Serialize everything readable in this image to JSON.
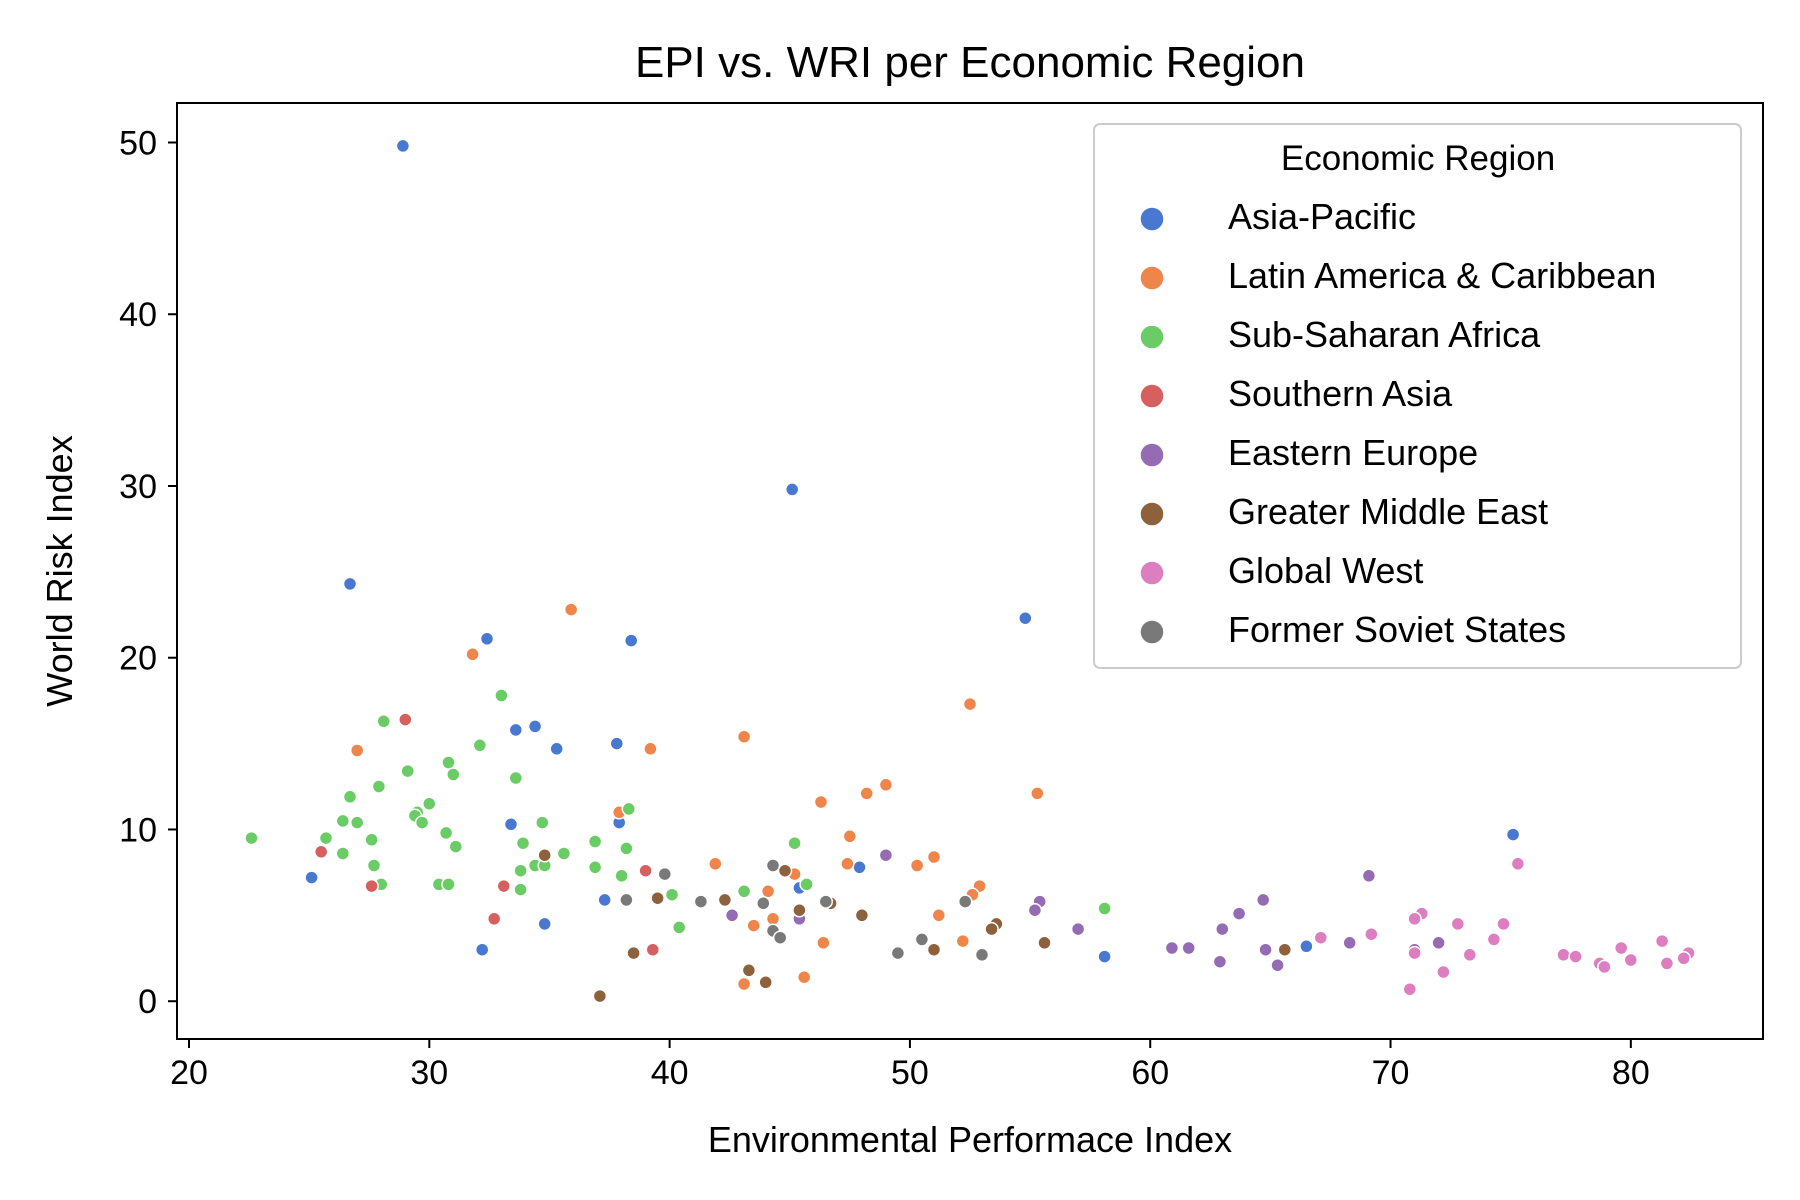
{
  "chart_data": {
    "type": "scatter",
    "title": "EPI vs. WRI per Economic Region",
    "xlabel": "Environmental Performace Index",
    "ylabel": "World Risk Index",
    "xlim": [
      19.5,
      85.5
    ],
    "ylim": [
      -2.2,
      52.3
    ],
    "xticks": [
      20,
      30,
      40,
      50,
      60,
      70,
      80
    ],
    "yticks": [
      0,
      10,
      20,
      30,
      40,
      50
    ],
    "grid": false,
    "legend": {
      "title": "Economic Region",
      "placement": "top-right"
    },
    "series": [
      {
        "name": "Asia-Pacific",
        "color": "#4878d0",
        "points": [
          [
            28.9,
            49.8
          ],
          [
            45.1,
            29.8
          ],
          [
            26.7,
            24.3
          ],
          [
            54.8,
            22.3
          ],
          [
            32.4,
            21.1
          ],
          [
            38.4,
            21.0
          ],
          [
            34.4,
            16.0
          ],
          [
            33.6,
            15.8
          ],
          [
            35.3,
            14.7
          ],
          [
            37.8,
            15.0
          ],
          [
            33.4,
            10.3
          ],
          [
            37.9,
            10.4
          ],
          [
            75.1,
            9.7
          ],
          [
            25.1,
            7.2
          ],
          [
            47.9,
            7.8
          ],
          [
            45.4,
            6.6
          ],
          [
            37.3,
            5.9
          ],
          [
            34.8,
            4.5
          ],
          [
            32.2,
            3.0
          ],
          [
            58.1,
            2.6
          ],
          [
            66.5,
            3.2
          ]
        ]
      },
      {
        "name": "Latin America & Caribbean",
        "color": "#ee854a",
        "points": [
          [
            35.9,
            22.8
          ],
          [
            31.8,
            20.2
          ],
          [
            52.5,
            17.3
          ],
          [
            27.0,
            14.6
          ],
          [
            43.1,
            15.4
          ],
          [
            39.2,
            14.7
          ],
          [
            55.3,
            12.1
          ],
          [
            49.0,
            12.6
          ],
          [
            48.2,
            12.1
          ],
          [
            46.3,
            11.6
          ],
          [
            37.9,
            11.0
          ],
          [
            47.5,
            9.6
          ],
          [
            51.0,
            8.4
          ],
          [
            50.3,
            7.9
          ],
          [
            47.4,
            8.0
          ],
          [
            41.9,
            8.0
          ],
          [
            45.2,
            7.4
          ],
          [
            52.9,
            6.7
          ],
          [
            52.6,
            6.2
          ],
          [
            44.1,
            6.4
          ],
          [
            51.2,
            5.0
          ],
          [
            44.3,
            4.8
          ],
          [
            43.5,
            4.4
          ],
          [
            52.2,
            3.5
          ],
          [
            46.4,
            3.4
          ],
          [
            45.6,
            1.4
          ],
          [
            43.1,
            1.0
          ]
        ]
      },
      {
        "name": "Sub-Saharan Africa",
        "color": "#6acc64",
        "points": [
          [
            33.0,
            17.8
          ],
          [
            28.1,
            16.3
          ],
          [
            32.1,
            14.9
          ],
          [
            30.8,
            13.9
          ],
          [
            29.1,
            13.4
          ],
          [
            31.0,
            13.2
          ],
          [
            33.6,
            13.0
          ],
          [
            27.9,
            12.5
          ],
          [
            26.7,
            11.9
          ],
          [
            30.0,
            11.5
          ],
          [
            38.3,
            11.2
          ],
          [
            29.5,
            11.0
          ],
          [
            29.4,
            10.8
          ],
          [
            29.7,
            10.4
          ],
          [
            27.0,
            10.4
          ],
          [
            26.4,
            10.5
          ],
          [
            34.7,
            10.4
          ],
          [
            30.7,
            9.8
          ],
          [
            22.6,
            9.5
          ],
          [
            25.7,
            9.5
          ],
          [
            27.6,
            9.4
          ],
          [
            36.9,
            9.3
          ],
          [
            45.2,
            9.2
          ],
          [
            33.9,
            9.2
          ],
          [
            31.1,
            9.0
          ],
          [
            38.2,
            8.9
          ],
          [
            35.6,
            8.6
          ],
          [
            26.4,
            8.6
          ],
          [
            34.4,
            7.9
          ],
          [
            34.8,
            7.9
          ],
          [
            36.9,
            7.8
          ],
          [
            27.7,
            7.9
          ],
          [
            33.8,
            7.6
          ],
          [
            38.0,
            7.3
          ],
          [
            28.0,
            6.8
          ],
          [
            30.4,
            6.8
          ],
          [
            30.8,
            6.8
          ],
          [
            45.7,
            6.8
          ],
          [
            43.1,
            6.4
          ],
          [
            33.8,
            6.5
          ],
          [
            40.1,
            6.2
          ],
          [
            40.4,
            4.3
          ],
          [
            58.1,
            5.4
          ]
        ]
      },
      {
        "name": "Southern Asia",
        "color": "#d65f5f",
        "points": [
          [
            29.0,
            16.4
          ],
          [
            25.5,
            8.7
          ],
          [
            27.6,
            6.7
          ],
          [
            33.1,
            6.7
          ],
          [
            39.0,
            7.6
          ],
          [
            32.7,
            4.8
          ],
          [
            39.3,
            3.0
          ]
        ]
      },
      {
        "name": "Eastern Europe",
        "color": "#956cb4",
        "points": [
          [
            49.0,
            8.5
          ],
          [
            69.1,
            7.3
          ],
          [
            55.4,
            5.8
          ],
          [
            64.7,
            5.9
          ],
          [
            55.2,
            5.3
          ],
          [
            63.7,
            5.1
          ],
          [
            42.6,
            5.0
          ],
          [
            45.4,
            4.8
          ],
          [
            57.0,
            4.2
          ],
          [
            63.0,
            4.2
          ],
          [
            60.9,
            3.1
          ],
          [
            61.6,
            3.1
          ],
          [
            64.8,
            3.0
          ],
          [
            68.3,
            3.4
          ],
          [
            72.0,
            3.4
          ],
          [
            71.0,
            3.0
          ],
          [
            62.9,
            2.3
          ],
          [
            65.3,
            2.1
          ]
        ]
      },
      {
        "name": "Greater Middle East",
        "color": "#8c613c",
        "points": [
          [
            34.8,
            8.5
          ],
          [
            44.8,
            7.6
          ],
          [
            39.5,
            6.0
          ],
          [
            42.3,
            5.9
          ],
          [
            46.7,
            5.7
          ],
          [
            45.4,
            5.3
          ],
          [
            48.0,
            5.0
          ],
          [
            53.6,
            4.5
          ],
          [
            53.4,
            4.2
          ],
          [
            55.6,
            3.4
          ],
          [
            51.0,
            3.0
          ],
          [
            65.6,
            3.0
          ],
          [
            38.5,
            2.8
          ],
          [
            43.3,
            1.8
          ],
          [
            44.0,
            1.1
          ],
          [
            37.1,
            0.3
          ]
        ]
      },
      {
        "name": "Global West",
        "color": "#dc7ec0",
        "points": [
          [
            75.3,
            8.0
          ],
          [
            71.3,
            5.1
          ],
          [
            71.0,
            4.8
          ],
          [
            72.8,
            4.5
          ],
          [
            74.7,
            4.5
          ],
          [
            69.2,
            3.9
          ],
          [
            67.1,
            3.7
          ],
          [
            74.3,
            3.6
          ],
          [
            81.3,
            3.5
          ],
          [
            79.6,
            3.1
          ],
          [
            71.0,
            2.8
          ],
          [
            73.3,
            2.7
          ],
          [
            77.2,
            2.7
          ],
          [
            77.7,
            2.6
          ],
          [
            80.0,
            2.4
          ],
          [
            82.4,
            2.8
          ],
          [
            82.2,
            2.5
          ],
          [
            78.7,
            2.2
          ],
          [
            78.9,
            2.0
          ],
          [
            81.5,
            2.2
          ],
          [
            72.2,
            1.7
          ],
          [
            70.8,
            0.7
          ]
        ]
      },
      {
        "name": "Former Soviet States",
        "color": "#797979",
        "points": [
          [
            44.3,
            7.9
          ],
          [
            39.8,
            7.4
          ],
          [
            41.3,
            5.8
          ],
          [
            38.2,
            5.9
          ],
          [
            43.9,
            5.7
          ],
          [
            52.3,
            5.8
          ],
          [
            46.5,
            5.8
          ],
          [
            44.3,
            4.1
          ],
          [
            44.6,
            3.7
          ],
          [
            50.5,
            3.6
          ],
          [
            49.5,
            2.8
          ],
          [
            53.0,
            2.7
          ]
        ]
      }
    ]
  }
}
